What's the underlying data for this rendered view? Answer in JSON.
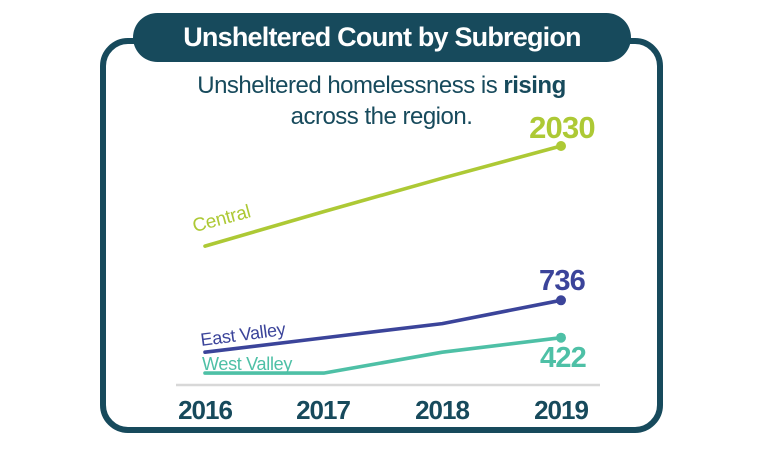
{
  "header": {
    "title": "Unsheltered Count by Subregion"
  },
  "subtitle": {
    "line1_regular": "Unsheltered homelessness is ",
    "line1_bold": "rising",
    "line2": "across the region."
  },
  "colors": {
    "frame_teal": "#174A5C",
    "central_green": "#ADC935",
    "east_valley_blue": "#3B449A",
    "west_valley_teal": "#4EC0A6",
    "axis_gray": "#D8D8D8",
    "background": "#FFFFFF"
  },
  "chart_data": {
    "type": "line",
    "title": "Unsheltered Count by Subregion",
    "subtitle": "Unsheltered homelessness is rising across the region.",
    "x_labels": [
      "2016",
      "2017",
      "2018",
      "2019"
    ],
    "series": [
      {
        "name": "Central",
        "color": "#ADC935",
        "values": [
          1190,
          1480,
          1760,
          2030
        ],
        "end_label": "2030"
      },
      {
        "name": "East Valley",
        "color": "#3B449A",
        "values": [
          300,
          420,
          540,
          736
        ],
        "end_label": "736"
      },
      {
        "name": "West Valley",
        "color": "#4EC0A6",
        "values": [
          125,
          125,
          300,
          422
        ],
        "end_label": "422"
      }
    ],
    "ylim": [
      0,
      2100
    ],
    "grid": false,
    "legend_position": "inline-series-labels",
    "annotation": "only final-year values are labeled on the chart"
  }
}
